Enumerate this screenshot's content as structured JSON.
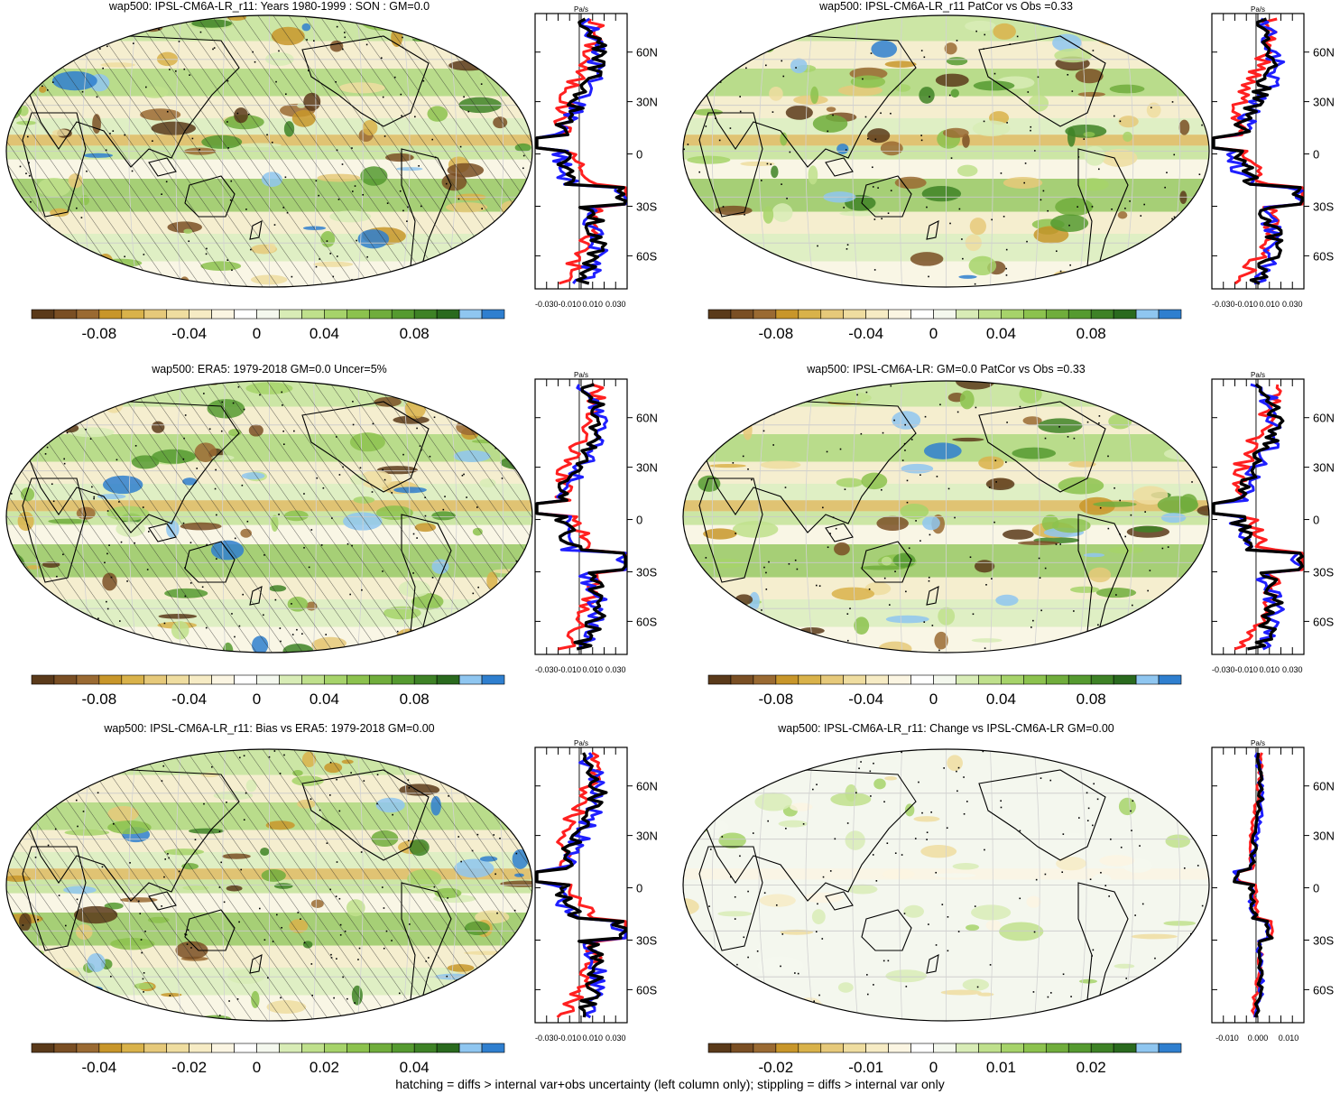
{
  "palette": [
    "#5a3a1a",
    "#7a4f24",
    "#9a6a32",
    "#c8962a",
    "#d9b24a",
    "#e6c97a",
    "#efdda0",
    "#f6ebc4",
    "#fbf5e2",
    "#ffffff",
    "#f4f8ee",
    "#d8ecb6",
    "#bfe08c",
    "#a6d36a",
    "#8cc24e",
    "#70ad3c",
    "#559a30",
    "#3e8226",
    "#2a6a1e",
    "#8fc6f0",
    "#2f7fcf"
  ],
  "line_colors": {
    "model": "#000000",
    "obs": "#1f1fff",
    "diff": "#ff2020"
  },
  "profile_lat_ticks": [
    "60N",
    "30N",
    "0",
    "30S",
    "60S"
  ],
  "profile_unit": "Pa/s",
  "panels": [
    {
      "title": "wap500: IPSL-CM6A-LR_r11: Years 1980-1999 : SON : GM=0.0",
      "colorbar_labels": [
        "-0.08",
        "-0.04",
        "0",
        "0.04",
        "0.08"
      ],
      "profile_ticks": [
        "-0.030",
        "-0.010",
        "0.010",
        "0.030"
      ],
      "hatch": true
    },
    {
      "title": "wap500: IPSL-CM6A-LR_r11 PatCor vs Obs =0.33",
      "colorbar_labels": [
        "-0.08",
        "-0.04",
        "0",
        "0.04",
        "0.08"
      ],
      "profile_ticks": [
        "-0.030",
        "-0.010",
        "0.010",
        "0.030"
      ],
      "hatch": false
    },
    {
      "title": "wap500: ERA5: 1979-2018 GM=0.0 Uncer=5%",
      "colorbar_labels": [
        "-0.08",
        "-0.04",
        "0",
        "0.04",
        "0.08"
      ],
      "profile_ticks": [
        "-0.030",
        "-0.010",
        "0.010",
        "0.030"
      ],
      "hatch": true
    },
    {
      "title": "wap500: IPSL-CM6A-LR: GM=0.0 PatCor vs Obs =0.33",
      "colorbar_labels": [
        "-0.08",
        "-0.04",
        "0",
        "0.04",
        "0.08"
      ],
      "profile_ticks": [
        "-0.030",
        "-0.010",
        "0.010",
        "0.030"
      ],
      "hatch": false
    },
    {
      "title": "wap500: IPSL-CM6A-LR_r11: Bias vs ERA5: 1979-2018  GM=0.00",
      "colorbar_labels": [
        "-0.04",
        "-0.02",
        "0",
        "0.02",
        "0.04"
      ],
      "profile_ticks": [
        "-0.030",
        "-0.010",
        "0.010",
        "0.030"
      ],
      "hatch": true
    },
    {
      "title": "wap500: IPSL-CM6A-LR_r11: Change vs IPSL-CM6A-LR GM=0.00",
      "colorbar_labels": [
        "-0.02",
        "-0.01",
        "0",
        "0.01",
        "0.02"
      ],
      "profile_ticks": [
        "-0.010",
        "0.000",
        "0.010"
      ],
      "hatch": false
    }
  ],
  "footer": "hatching = diffs > internal var+obs uncertainty (left column only); stippling = diffs > internal var only"
}
